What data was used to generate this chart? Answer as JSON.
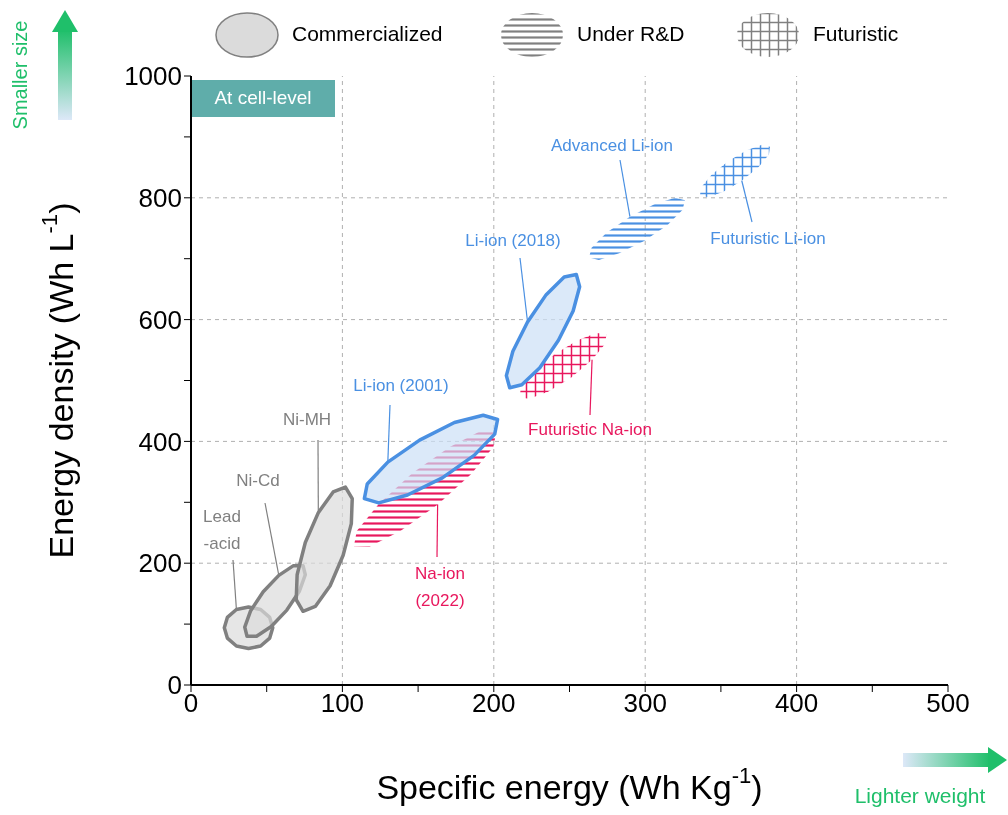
{
  "chart_data": {
    "type": "area",
    "xlabel": "Specific energy (Wh Kg$^{-1}$)",
    "ylabel": "Energy density (Wh L$^{-1}$)",
    "xlim": [
      0,
      500
    ],
    "ylim": [
      0,
      1000
    ],
    "xticks": [
      0,
      {
        "value": 50,
        "label": null
      },
      100,
      {
        "value": 150,
        "label": null
      },
      200,
      {
        "value": 250,
        "label": null
      },
      300,
      {
        "value": 350,
        "label": null
      },
      400,
      {
        "value": 450,
        "label": null
      },
      500
    ],
    "yticks": [
      0,
      {
        "value": 100,
        "label": null
      },
      200,
      {
        "value": 300,
        "label": null
      },
      400,
      {
        "value": 500,
        "label": null
      },
      600,
      {
        "value": 700,
        "label": null
      },
      800,
      {
        "value": 900,
        "label": null
      },
      1000
    ],
    "grid": true,
    "series": [
      {
        "color": "#808080",
        "x": [
          54,
          52,
          46,
          38,
          30,
          24,
          22,
          24,
          30,
          38,
          46,
          52
        ],
        "values": [
          94,
          111,
          124,
          128,
          124,
          111,
          94,
          77,
          64,
          60,
          64,
          77
        ]
      },
      {
        "color": "#808080",
        "x": [
          74,
          75.5,
          71.6,
          63.3,
          53,
          43.3,
          37,
          35.5,
          39.4,
          47.7,
          58,
          67.7
        ],
        "values": [
          196,
          181,
          154,
          123,
          96,
          80,
          80,
          95,
          122,
          153,
          180,
          196
        ]
      },
      {
        "color": "#808080",
        "x": [
          102,
          106.5,
          105.9,
          100.5,
          91.9,
          82.1,
          74,
          69.5,
          70.1,
          75.5,
          84.1,
          93.9
        ],
        "values": [
          325,
          306,
          265,
          213,
          163,
          129,
          121,
          140,
          181,
          234,
          283,
          317
        ]
      },
      {
        "color": "#4a90e2",
        "x": [
          202.5,
          200.6,
          187,
          166,
          143,
          124,
          114.5,
          116.4,
          130,
          151,
          174,
          193
        ],
        "values": [
          436,
          412,
          377,
          340,
          312,
          299,
          306,
          330,
          366,
          402,
          431,
          443
        ]
      },
      {
        "color": "#e8175d",
        "x": [
          201.6,
          199.7,
          185.3,
          162.9,
          138.3,
          117.9,
          107.6,
          109.5,
          123.9,
          146.3,
          170.9,
          191.3
        ],
        "values": [
          416,
          391,
          347,
          296,
          253,
          227,
          228,
          253,
          297,
          348,
          391,
          417
        ]
      },
      {
        "color": "#4a90e2",
        "x": [
          254.5,
          256.7,
          252.4,
          242.7,
          230.4,
          218.5,
          210.5,
          208.3,
          212.6,
          222.3,
          234.6,
          246.5
        ],
        "values": [
          674,
          654,
          614,
          566,
          521,
          493,
          488,
          508,
          548,
          596,
          641,
          670
        ]
      },
      {
        "color": "#e8175d",
        "x": [
          274.4,
          273.5,
          264.9,
          251.2,
          236.1,
          223.5,
          217,
          217.9,
          226.5,
          240.2,
          255.3,
          267.9
        ],
        "values": [
          576,
          560,
          534,
          505,
          482,
          470,
          472,
          488,
          514,
          543,
          566,
          578
        ]
      },
      {
        "color": "#4a90e2",
        "x": [
          326.3,
          324.6,
          314.6,
          299.3,
          282.8,
          269.4,
          262.9,
          264.6,
          274.6,
          289.9,
          306.4,
          319.8
        ],
        "values": [
          796,
          780,
          755,
          729,
          709,
          698,
          702,
          718,
          743,
          769,
          790,
          800
        ]
      },
      {
        "color": "#4a90e2",
        "x": [
          382.4,
          381.7,
          374.8,
          363.8,
          351.6,
          341.5,
          336.2,
          336.9,
          343.8,
          354.8,
          367,
          377.1
        ],
        "values": [
          884,
          871,
          850,
          828,
          810,
          801,
          804,
          817,
          838,
          860,
          878,
          887
        ]
      }
    ],
    "annotations": [
      {
        "text": "Lead\n-acid",
        "x": 30,
        "y": 124
      },
      {
        "text": "Ni-Cd",
        "x": 58,
        "y": 180
      },
      {
        "text": "Ni-MH",
        "x": 84.1,
        "y": 283
      },
      {
        "text": "Li-ion (2001)",
        "x": 130,
        "y": 366
      },
      {
        "text": "Na-ion\n(2022)",
        "x": 162.9,
        "y": 296
      },
      {
        "text": "Li-ion (2018)",
        "x": 222.3,
        "y": 596
      },
      {
        "text": "Futuristic Na-ion",
        "x": 264.9,
        "y": 534
      },
      {
        "text": "Advanced Li-ion",
        "x": 289.9,
        "y": 769
      },
      {
        "text": "Futuristic Li-ion",
        "x": 363.8,
        "y": 828
      },
      "Commercialized",
      "Under R&D",
      "Futuristic",
      "At cell-level",
      "Smaller size",
      "Lighter weight"
    ]
  }
}
